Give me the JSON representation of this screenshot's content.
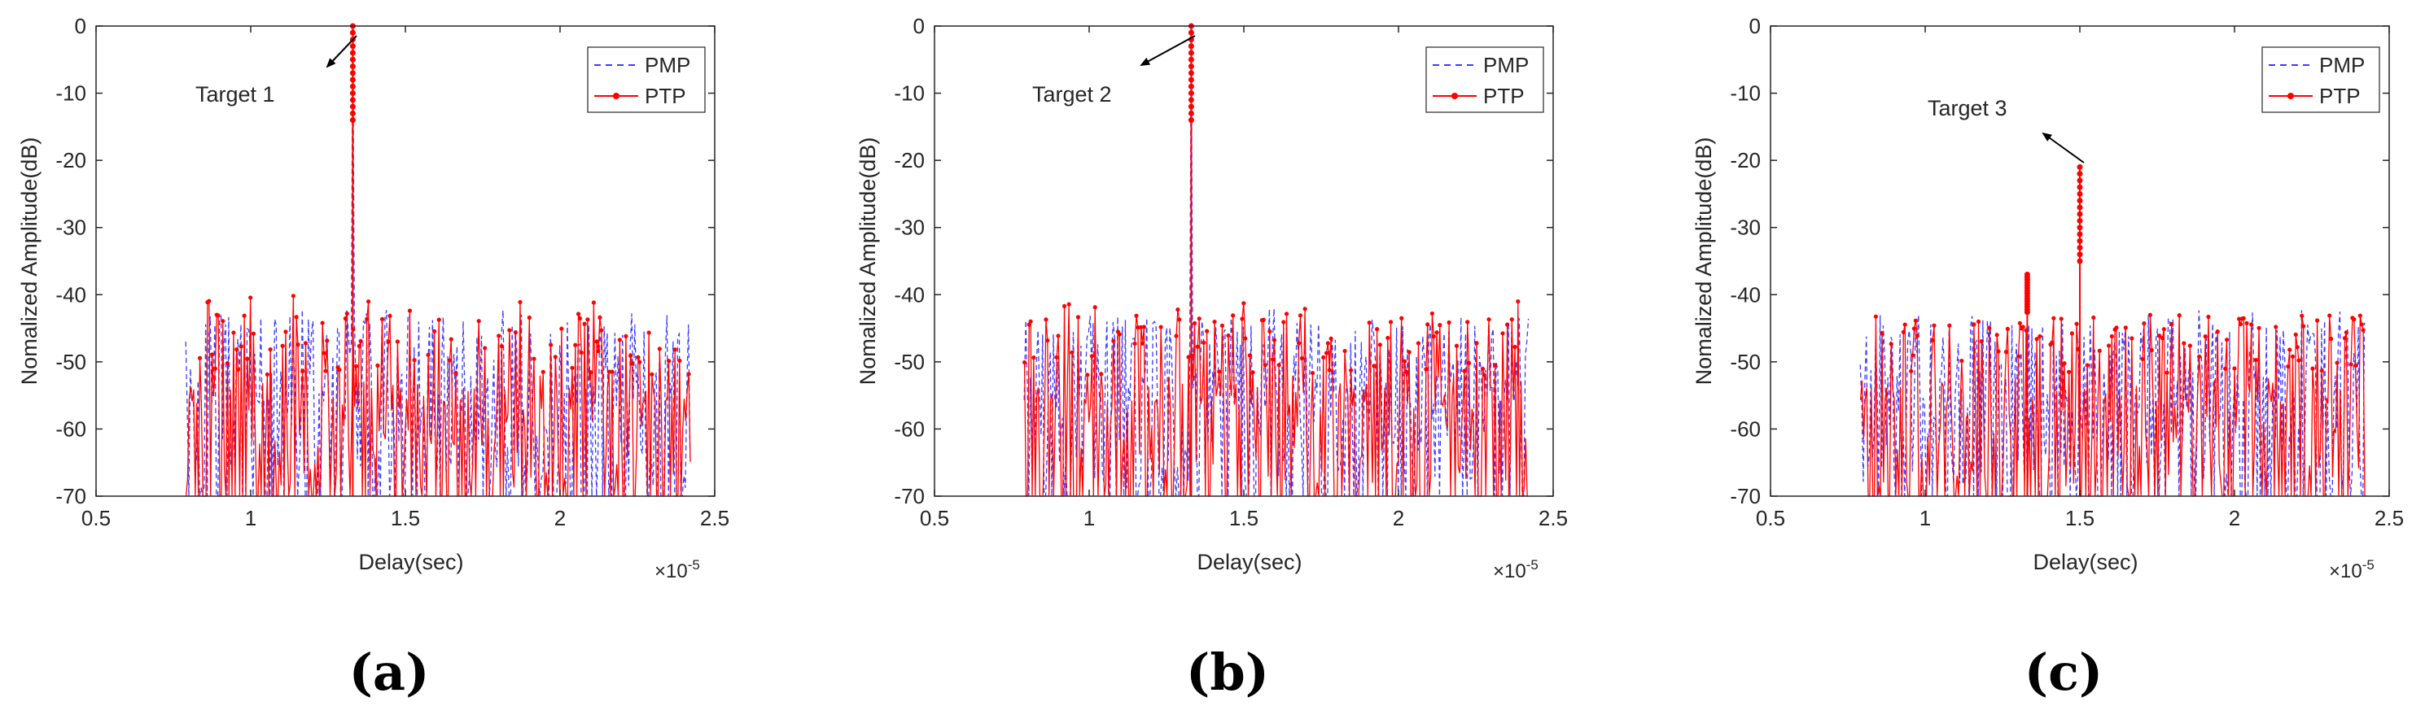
{
  "colors": {
    "pmp": "#3b3bff",
    "ptp": "#ff0000",
    "axis": "#262626",
    "background": "#ffffff"
  },
  "chart_data": [
    {
      "type": "line",
      "panel_label": "(a)",
      "xlabel": "Delay(sec)",
      "ylabel": "Nomalized Amplitude(dB)",
      "x_exponent": "×10",
      "x_exponent_power": "-5",
      "xlim": [
        0.5,
        2.5
      ],
      "ylim": [
        -70,
        0
      ],
      "x_ticks": [
        0.5,
        1,
        1.5,
        2,
        2.5
      ],
      "x_tick_labels": [
        "0.5",
        "1",
        "1.5",
        "2",
        "2.5"
      ],
      "y_ticks": [
        0,
        -10,
        -20,
        -30,
        -40,
        -50,
        -60,
        -70
      ],
      "y_tick_labels": [
        "0",
        "-10",
        "-20",
        "-30",
        "-40",
        "-50",
        "-60",
        "-70"
      ],
      "legend": [
        "PMP",
        "PTP"
      ],
      "legend_position": "top-right",
      "grid": false,
      "noise_range": [
        0.79,
        2.42
      ],
      "annotation": {
        "text": "Target 1",
        "x": 1.33,
        "y": 0
      },
      "peaks": [
        {
          "x": 1.33,
          "y": 0,
          "series": "both"
        }
      ],
      "noise_floor": {
        "pmp_max": -42,
        "ptp_max": -40,
        "typical": -50
      }
    },
    {
      "type": "line",
      "panel_label": "(b)",
      "xlabel": "Delay(sec)",
      "ylabel": "Nomalized Amplitude(dB)",
      "x_exponent": "×10",
      "x_exponent_power": "-5",
      "xlim": [
        0.5,
        2.5
      ],
      "ylim": [
        -70,
        0
      ],
      "x_ticks": [
        0.5,
        1,
        1.5,
        2,
        2.5
      ],
      "x_tick_labels": [
        "0.5",
        "1",
        "1.5",
        "2",
        "2.5"
      ],
      "y_ticks": [
        0,
        -10,
        -20,
        -30,
        -40,
        -50,
        -60,
        -70
      ],
      "y_tick_labels": [
        "0",
        "-10",
        "-20",
        "-30",
        "-40",
        "-50",
        "-60",
        "-70"
      ],
      "legend": [
        "PMP",
        "PTP"
      ],
      "legend_position": "top-right",
      "grid": false,
      "noise_range": [
        0.79,
        2.42
      ],
      "annotation": {
        "text": "Target 2",
        "x": 1.33,
        "y": 0
      },
      "peaks": [
        {
          "x": 1.33,
          "y": 0,
          "series": "both"
        }
      ],
      "noise_floor": {
        "pmp_max": -42,
        "ptp_max": -41,
        "typical": -50
      }
    },
    {
      "type": "line",
      "panel_label": "(c)",
      "xlabel": "Delay(sec)",
      "ylabel": "Nomalized Amplitude(dB)",
      "x_exponent": "×10",
      "x_exponent_power": "-5",
      "xlim": [
        0.5,
        2.5
      ],
      "ylim": [
        -70,
        0
      ],
      "x_ticks": [
        0.5,
        1,
        1.5,
        2,
        2.5
      ],
      "x_tick_labels": [
        "0.5",
        "1",
        "1.5",
        "2",
        "2.5"
      ],
      "y_ticks": [
        0,
        -10,
        -20,
        -30,
        -40,
        -50,
        -60,
        -70
      ],
      "y_tick_labels": [
        "0",
        "-10",
        "-20",
        "-30",
        "-40",
        "-50",
        "-60",
        "-70"
      ],
      "legend": [
        "PMP",
        "PTP"
      ],
      "legend_position": "top-right",
      "grid": false,
      "noise_range": [
        0.79,
        2.42
      ],
      "annotation": {
        "text": "Target 3",
        "x": 1.5,
        "y": -21
      },
      "peaks": [
        {
          "x": 1.5,
          "y": -21,
          "series": "ptp"
        },
        {
          "x": 1.33,
          "y": -37,
          "series": "ptp"
        }
      ],
      "noise_floor": {
        "pmp_max": -42,
        "ptp_max": -43,
        "typical": -50
      }
    }
  ]
}
